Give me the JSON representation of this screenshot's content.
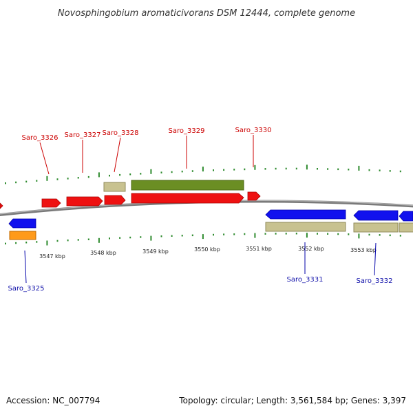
{
  "title": "Novosphingobium aromaticivorans DSM 12444, complete genome",
  "footer": {
    "accession": "Accession: NC_007794",
    "topology": "Topology: circular; Length: 3,561,584 bp; Genes: 3,397"
  },
  "colors": {
    "forward_gene": "#ee1111",
    "reverse_gene": "#1111ee",
    "rna_feature": "#6b8e23",
    "misc_feature": "#c8c290",
    "orange_feature": "#ff9a1a",
    "tick": "#2e8b2e",
    "backbone": "#888888"
  },
  "kbp_labels": [
    {
      "text": "3547 kbp"
    },
    {
      "text": "3548 kbp"
    },
    {
      "text": "3549 kbp"
    },
    {
      "text": "3550 kbp"
    },
    {
      "text": "3551 kbp"
    },
    {
      "text": "3552 kbp"
    },
    {
      "text": "3553 kbp"
    }
  ],
  "genes": [
    {
      "label": "Saro_3326",
      "strand": "forward"
    },
    {
      "label": "Saro_3327",
      "strand": "forward"
    },
    {
      "label": "Saro_3328",
      "strand": "forward"
    },
    {
      "label": "Saro_3329",
      "strand": "forward"
    },
    {
      "label": "Saro_3330",
      "strand": "forward"
    },
    {
      "label": "Saro_3325",
      "strand": "reverse"
    },
    {
      "label": "Saro_3331",
      "strand": "reverse"
    },
    {
      "label": "Saro_3332",
      "strand": "reverse"
    }
  ]
}
